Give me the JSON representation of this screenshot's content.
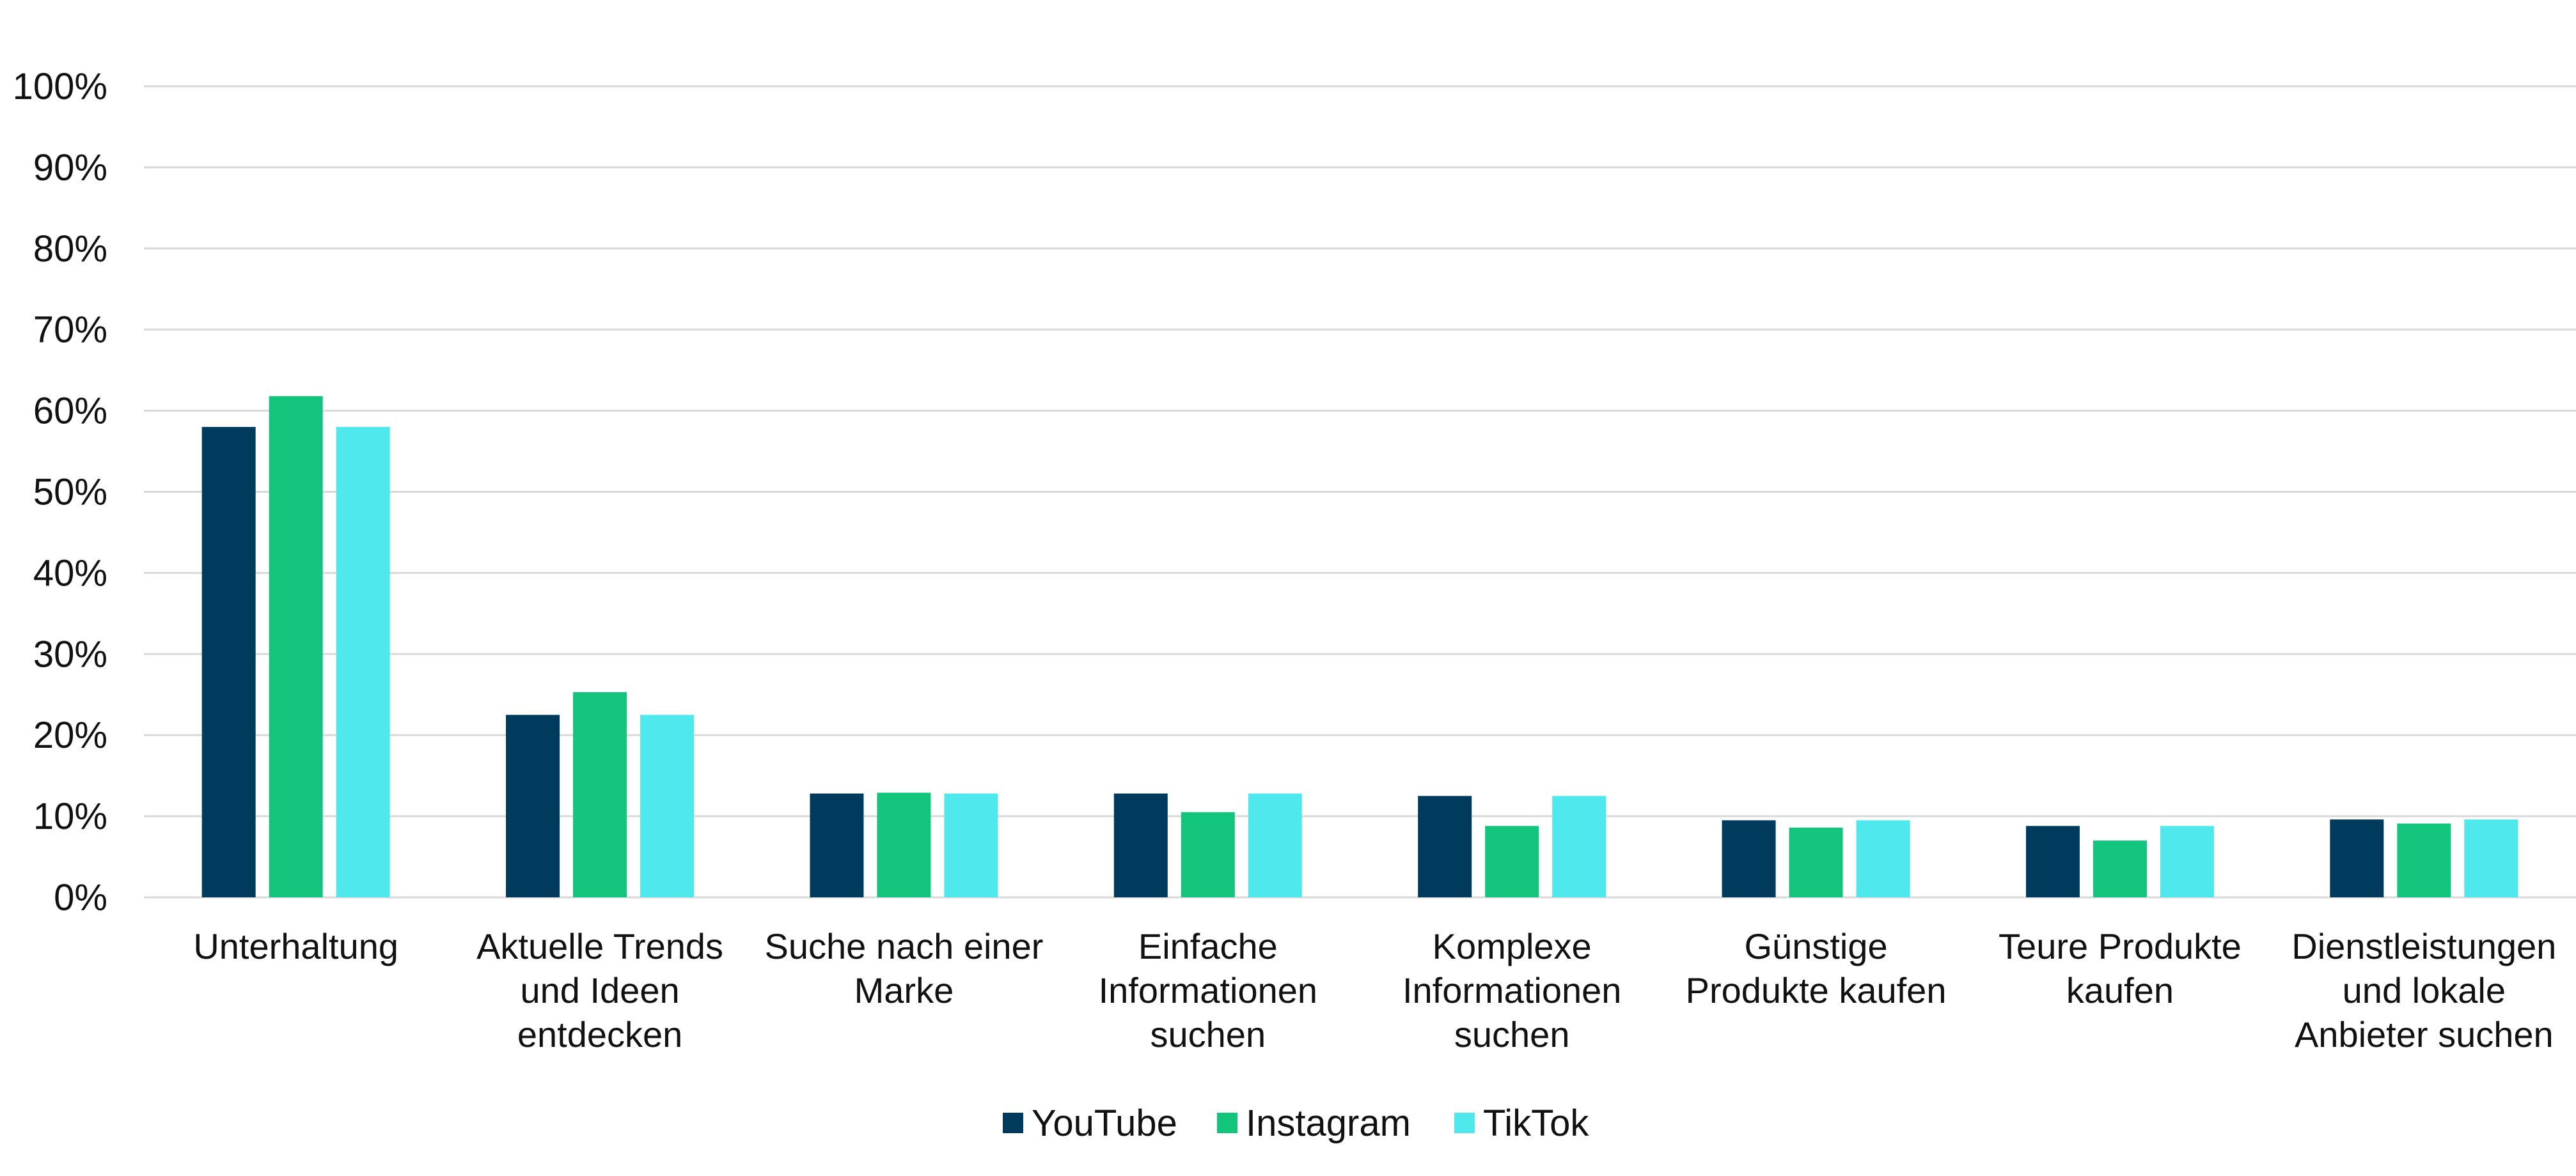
{
  "chart_data": {
    "type": "bar",
    "title": "",
    "xlabel": "",
    "ylabel": "",
    "ylim": [
      0,
      100
    ],
    "y_ticks": [
      "0%",
      "10%",
      "20%",
      "30%",
      "40%",
      "50%",
      "60%",
      "70%",
      "80%",
      "90%",
      "100%"
    ],
    "grid": true,
    "legend_position": "bottom-center",
    "categories": [
      [
        "Unterhaltung"
      ],
      [
        "Aktuelle Trends",
        "und Ideen",
        "entdecken"
      ],
      [
        "Suche nach einer",
        "Marke"
      ],
      [
        "Einfache",
        "Informationen",
        "suchen"
      ],
      [
        "Komplexe",
        "Informationen",
        "suchen"
      ],
      [
        "Günstige",
        "Produkte kaufen"
      ],
      [
        "Teure Produkte",
        "kaufen"
      ],
      [
        "Dienstleistungen",
        "und lokale",
        "Anbieter suchen"
      ]
    ],
    "series": [
      {
        "name": "YouTube",
        "color": "#003a5c",
        "values": [
          58,
          22.5,
          12.8,
          12.8,
          12.5,
          9.5,
          8.8,
          9.6
        ]
      },
      {
        "name": "Instagram",
        "color": "#13c47c",
        "values": [
          61.8,
          25.3,
          12.9,
          10.5,
          8.8,
          8.6,
          7.0,
          9.1
        ]
      },
      {
        "name": "TikTok",
        "color": "#4fe8ec",
        "values": [
          58,
          22.5,
          12.8,
          12.8,
          12.5,
          9.5,
          8.8,
          9.6
        ]
      }
    ]
  }
}
